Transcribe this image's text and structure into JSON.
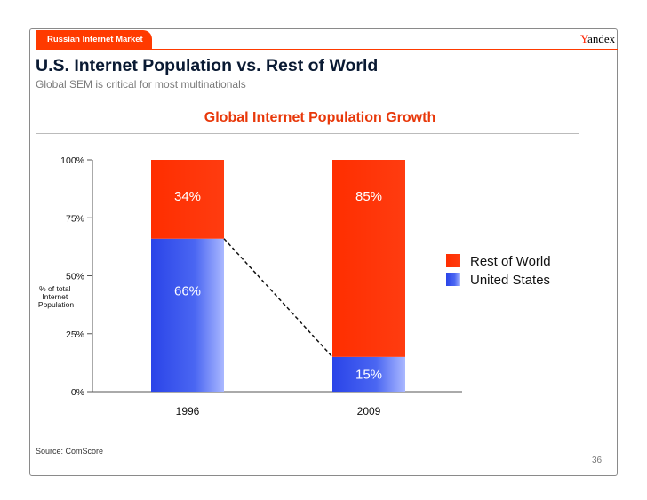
{
  "header": {
    "tab_label": "Russian Internet Market",
    "logo": "Yandex",
    "title": "U.S. Internet Population vs. Rest of World",
    "subtitle": "Global SEM is critical for most multinationals"
  },
  "footer": {
    "source": "Source: ComScore",
    "page_number": "36"
  },
  "colors": {
    "accent": "#ff3a00",
    "rest_of_world": "#ff3300",
    "united_states": "#3355ee"
  },
  "chart_data": {
    "type": "bar",
    "stacked": true,
    "title": "Global Internet Population Growth",
    "ylabel": "% of total Internet Population",
    "xlabel": "",
    "ylim": [
      0,
      100
    ],
    "yticks": [
      "0%",
      "25%",
      "50%",
      "75%",
      "100%"
    ],
    "categories": [
      "1996",
      "2009"
    ],
    "series": [
      {
        "name": "United States",
        "values": [
          66,
          15
        ],
        "labels": [
          "66%",
          "15%"
        ],
        "color": "#3355ee"
      },
      {
        "name": "Rest of World",
        "values": [
          34,
          85
        ],
        "labels": [
          "34%",
          "85%"
        ],
        "color": "#ff3300"
      }
    ],
    "annotations": [
      "dashed connector line between the top of the United States segments"
    ],
    "legend": {
      "placement": "right",
      "entries": [
        "Rest of World",
        "United States"
      ]
    },
    "grid": false
  }
}
